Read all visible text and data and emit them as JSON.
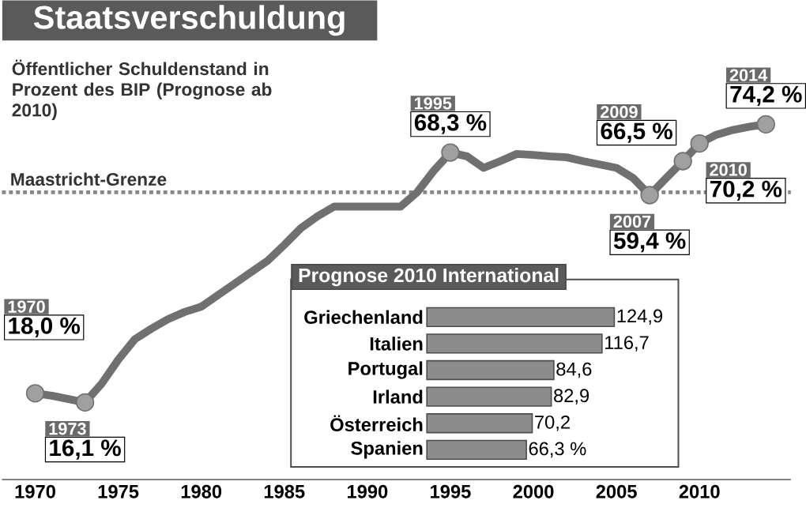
{
  "chart_data": [
    {
      "type": "line",
      "title": "Staatsverschuldung",
      "subtitle": "Öffentlicher Schuldenstand in Prozent des BIP (Prognose ab 2010)",
      "x": [
        1970,
        1971,
        1972,
        1973,
        1974,
        1975,
        1976,
        1977,
        1978,
        1979,
        1980,
        1981,
        1982,
        1983,
        1984,
        1985,
        1986,
        1987,
        1988,
        1989,
        1990,
        1991,
        1992,
        1993,
        1994,
        1995,
        1996,
        1997,
        1998,
        1999,
        2000,
        2001,
        2002,
        2003,
        2004,
        2005,
        2006,
        2007,
        2008,
        2009,
        2010,
        2011,
        2012,
        2013,
        2014
      ],
      "values": [
        18.0,
        17.5,
        16.8,
        16.1,
        20.0,
        25.0,
        29.3,
        31.5,
        33.5,
        35.0,
        36.1,
        38.5,
        40.9,
        43.3,
        45.7,
        49.0,
        52.5,
        55.0,
        57.0,
        57.0,
        57.0,
        57.0,
        57.0,
        60.0,
        64.5,
        68.3,
        67.5,
        65.1,
        66.5,
        68.0,
        67.8,
        67.5,
        67.3,
        66.5,
        65.8,
        65.1,
        63.0,
        59.4,
        63.0,
        66.5,
        70.2,
        72.0,
        73.0,
        73.7,
        74.2
      ],
      "value_labels": [
        "18,0 %",
        null,
        null,
        "16,1 %",
        null,
        null,
        null,
        null,
        null,
        null,
        null,
        null,
        null,
        null,
        null,
        null,
        null,
        null,
        null,
        null,
        null,
        null,
        null,
        null,
        null,
        "68,3 %",
        null,
        null,
        null,
        null,
        null,
        null,
        null,
        null,
        null,
        null,
        null,
        "59,4 %",
        null,
        "66,5 %",
        "70,2 %",
        null,
        null,
        null,
        "74,2 %"
      ],
      "color": "#707070",
      "xlim": [
        1968,
        2015.5
      ],
      "xticks": [
        1970,
        1975,
        1980,
        1985,
        1990,
        1995,
        2000,
        2005,
        2010
      ],
      "tick_labels": "x",
      "ref_lines": [
        {
          "axis": "y",
          "value": 60,
          "label": "Maastricht-Grenze",
          "line_style": "dotted",
          "color": "#888888"
        }
      ],
      "annotations": [
        "1970",
        "1973",
        "1995",
        "2007",
        "2009",
        "2010",
        "2014"
      ]
    },
    {
      "type": "bar",
      "orientation": "horizontal",
      "title": "Prognose 2010 International",
      "categories": [
        "Griechenland",
        "Italien",
        "Portugal",
        "Irland",
        "Österreich",
        "Spanien"
      ],
      "values": [
        124.9,
        116.7,
        84.6,
        82.9,
        70.2,
        66.3
      ],
      "value_labels": [
        "124,9",
        "116,7",
        "84,6",
        "82,9",
        "70,2",
        "66,3 %"
      ],
      "color": "#8c8c8c",
      "tick_labels": "y"
    }
  ]
}
